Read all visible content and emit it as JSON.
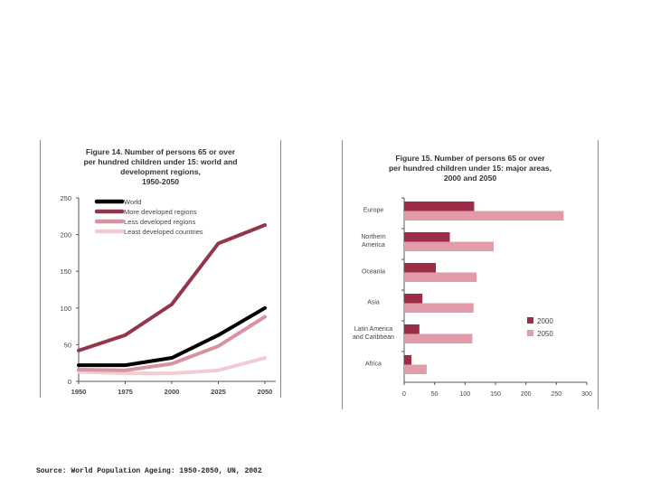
{
  "source_note": "Source: World Population Ageing: 1950-2050, UN, 2002",
  "colors": {
    "world": "#000000",
    "more_developed": "#94364a",
    "less_developed": "#d7939f",
    "least_developed": "#efcdd3",
    "bar_2000": "#9b2d46",
    "bar_2050": "#e29ba8",
    "axis_text": "#444444"
  },
  "chart_data": [
    {
      "type": "line",
      "title": "Figure 14.  Number of persons 65 or over\nper hundred children under 15: world and\ndevelopment regions,\n1950-2050",
      "xlabel": "",
      "ylabel": "",
      "x": [
        1950,
        1975,
        2000,
        2025,
        2050
      ],
      "x_tick_labels": [
        "1950",
        "1975",
        "2000",
        "2025",
        "2050"
      ],
      "ylim": [
        0,
        250
      ],
      "y_ticks": [
        0,
        50,
        100,
        150,
        200,
        250
      ],
      "y_tick_labels": [
        "0",
        "50",
        "100",
        "150",
        "200",
        "250"
      ],
      "legend_position": "top-left",
      "series": [
        {
          "name": "World",
          "color_key": "world",
          "values": [
            22,
            22,
            32,
            63,
            100
          ]
        },
        {
          "name": "More developed regions",
          "color_key": "more_developed",
          "values": [
            42,
            63,
            105,
            188,
            213
          ]
        },
        {
          "name": "Less developed regions",
          "color_key": "less_developed",
          "values": [
            16,
            15,
            24,
            48,
            88
          ]
        },
        {
          "name": "Least developed countries",
          "color_key": "least_developed",
          "values": [
            13,
            11,
            11,
            15,
            32
          ]
        }
      ]
    },
    {
      "type": "bar",
      "orientation": "horizontal",
      "title": "Figure 15.  Number of persons 65 or over\nper hundred children under 15: major areas,\n2000 and 2050",
      "xlabel": "",
      "ylabel": "",
      "categories": [
        "Europe",
        "Northern\nAmerica",
        "Oceania",
        "Asia",
        "Latin America\nand Caribbean",
        "Africa"
      ],
      "xlim": [
        0,
        300
      ],
      "x_ticks": [
        0,
        50,
        100,
        150,
        200,
        250,
        300
      ],
      "x_tick_labels": [
        "0",
        "50",
        "100",
        "150",
        "200",
        "250",
        "300"
      ],
      "legend_position": "right",
      "series": [
        {
          "name": "2000",
          "color_key": "bar_2000",
          "values": [
            115,
            75,
            52,
            30,
            25,
            12
          ]
        },
        {
          "name": "2050",
          "color_key": "bar_2050",
          "values": [
            262,
            147,
            119,
            114,
            112,
            37
          ]
        }
      ]
    }
  ]
}
